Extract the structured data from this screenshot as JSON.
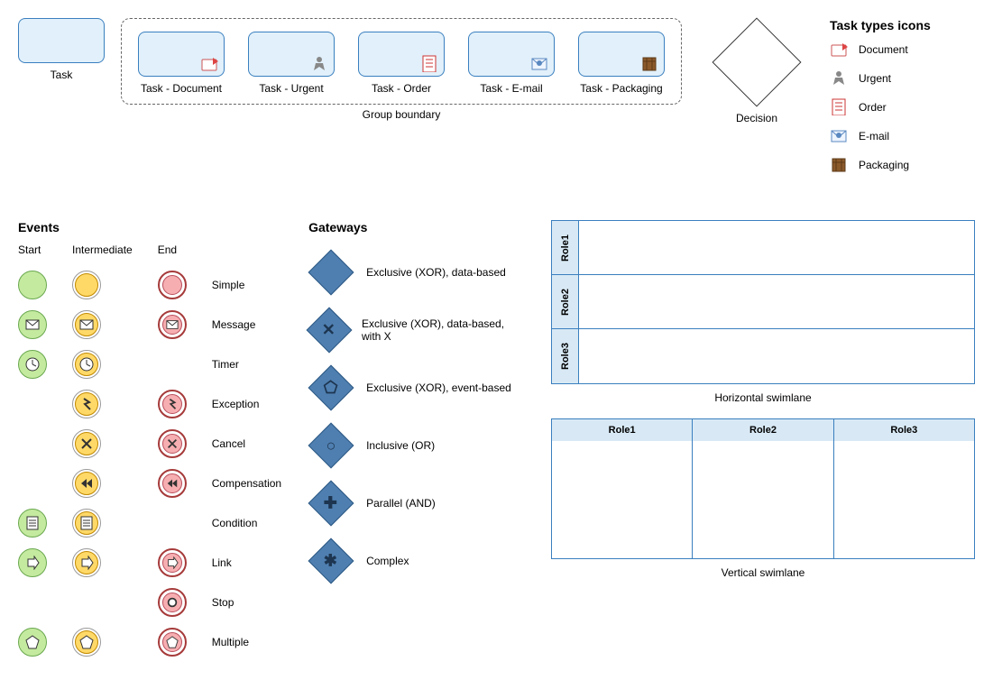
{
  "colors": {
    "task_fill": "#e1f0fa",
    "task_border": "#3a7fbf",
    "start_fill": "#c4ea9f",
    "start_border": "#6aa84f",
    "inter_fill": "#ffd968",
    "inter_border": "#c28a00",
    "end_ring": "#a63a3a",
    "end_fill": "#f6aeb1",
    "end_inner_border": "#b84c5a",
    "gate_fill": "#4f7fb0",
    "gate_border": "#2e5a85",
    "swim_header": "#d8e9f5"
  },
  "top": {
    "task_label": "Task",
    "group": {
      "items": [
        {
          "label": "Task - Document",
          "icon": "document"
        },
        {
          "label": "Task - Urgent",
          "icon": "urgent"
        },
        {
          "label": "Task - Order",
          "icon": "order"
        },
        {
          "label": "Task - E-mail",
          "icon": "email"
        },
        {
          "label": "Task - Packaging",
          "icon": "packaging"
        }
      ],
      "caption": "Group boundary"
    },
    "decision_label": "Decision",
    "legend": {
      "title": "Task types icons",
      "items": [
        {
          "label": "Document",
          "icon": "document"
        },
        {
          "label": "Urgent",
          "icon": "urgent"
        },
        {
          "label": "Order",
          "icon": "order"
        },
        {
          "label": "E-mail",
          "icon": "email"
        },
        {
          "label": "Packaging",
          "icon": "packaging"
        }
      ]
    }
  },
  "events": {
    "title": "Events",
    "start_title": "Start",
    "inter_title": "Intermediate",
    "end_title": "End",
    "rows": [
      {
        "label": "Simple",
        "start": true,
        "inter": true,
        "end": true,
        "sym": ""
      },
      {
        "label": "Message",
        "start": true,
        "inter": true,
        "end": true,
        "sym": "mail"
      },
      {
        "label": "Timer",
        "start": true,
        "inter": true,
        "end": false,
        "sym": "clock"
      },
      {
        "label": "Exception",
        "start": false,
        "inter": true,
        "end": true,
        "sym": "bolt"
      },
      {
        "label": "Cancel",
        "start": false,
        "inter": true,
        "end": true,
        "sym": "x"
      },
      {
        "label": "Compensation",
        "start": false,
        "inter": true,
        "end": true,
        "sym": "rewind"
      },
      {
        "label": "Condition",
        "start": true,
        "inter": true,
        "end": false,
        "sym": "lines"
      },
      {
        "label": "Link",
        "start": true,
        "inter": true,
        "end": true,
        "sym": "arrow"
      },
      {
        "label": "Stop",
        "start": false,
        "inter": false,
        "end": true,
        "sym": "dot"
      },
      {
        "label": "Multiple",
        "start": true,
        "inter": true,
        "end": true,
        "sym": "pentagon"
      }
    ]
  },
  "gateways": {
    "title": "Gateways",
    "items": [
      {
        "label": "Exclusive (XOR), data-based",
        "sym": ""
      },
      {
        "label": "Exclusive (XOR), data-based, with X",
        "sym": "✕"
      },
      {
        "label": "Exclusive (XOR), event-based",
        "sym": "⬠"
      },
      {
        "label": "Inclusive (OR)",
        "sym": "○"
      },
      {
        "label": "Parallel (AND)",
        "sym": "✚"
      },
      {
        "label": "Complex",
        "sym": "✱"
      }
    ]
  },
  "swimlanes": {
    "horizontal": {
      "roles": [
        "Role1",
        "Role2",
        "Role3"
      ],
      "caption": "Horizontal swimlane"
    },
    "vertical": {
      "roles": [
        "Role1",
        "Role2",
        "Role3"
      ],
      "caption": "Vertical swimlane"
    }
  }
}
